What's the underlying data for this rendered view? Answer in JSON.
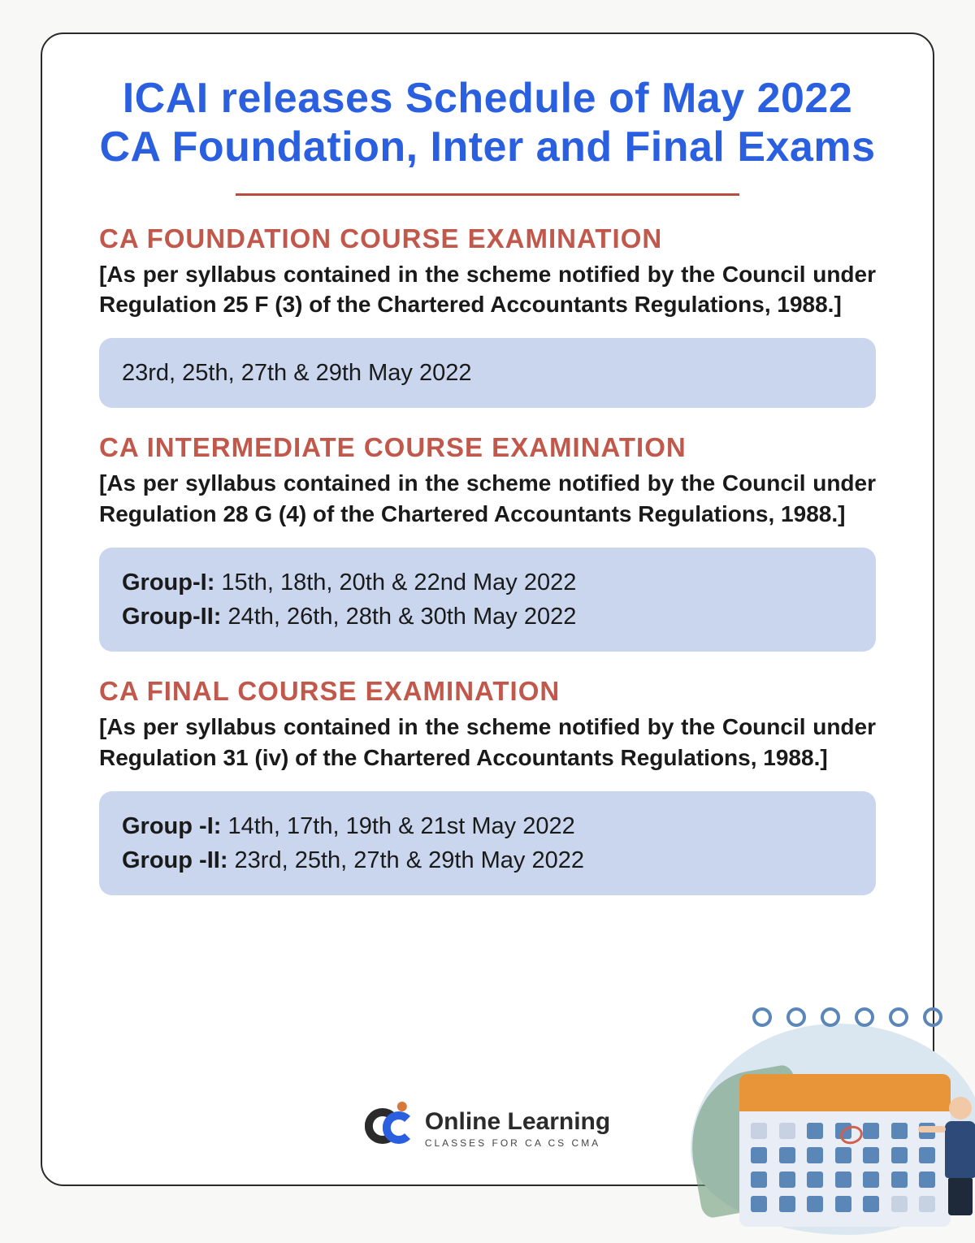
{
  "colors": {
    "title": "#2a5fe0",
    "section_heading": "#c1584c",
    "body_text": "#1a1a1a",
    "datebox_bg": "#c9d6ee",
    "card_border": "#2b2b2b",
    "page_bg": "#f8f8f6",
    "divider": "#b84a3f"
  },
  "typography": {
    "title_fontsize": 52,
    "section_heading_fontsize": 33,
    "subtext_fontsize": 28,
    "datebox_fontsize": 29
  },
  "title_line1": "ICAI releases Schedule of May 2022",
  "title_line2": "CA Foundation, Inter and Final Exams",
  "sections": [
    {
      "heading": "CA FOUNDATION COURSE EXAMINATION",
      "subtext": "[As per syllabus contained in the scheme notified by the Council under Regulation 25 F (3) of the Chartered Accountants Regulations, 1988.]",
      "lines": [
        {
          "label": "",
          "dates": "23rd, 25th, 27th & 29th May 2022"
        }
      ]
    },
    {
      "heading": "CA INTERMEDIATE COURSE EXAMINATION",
      "subtext": "[As per syllabus contained in the scheme notified by the Council under Regulation 28 G (4) of the Chartered Accountants Regulations, 1988.]",
      "lines": [
        {
          "label": "Group-I: ",
          "dates": "15th, 18th, 20th & 22nd May 2022"
        },
        {
          "label": "Group-II: ",
          "dates": "24th, 26th, 28th & 30th May 2022"
        }
      ]
    },
    {
      "heading": "CA FINAL COURSE EXAMINATION",
      "subtext": "[As per syllabus contained in the scheme notified by the Council under Regulation 31 (iv) of the Chartered Accountants Regulations, 1988.]",
      "lines": [
        {
          "label": "Group -I: ",
          "dates": "14th, 17th, 19th & 21st May 2022"
        },
        {
          "label": "Group -II: ",
          "dates": "23rd, 25th, 27th & 29th May 2022"
        }
      ]
    }
  ],
  "branding": {
    "main": "Online Learning",
    "sub": "CLASSES FOR CA CS CMA"
  }
}
